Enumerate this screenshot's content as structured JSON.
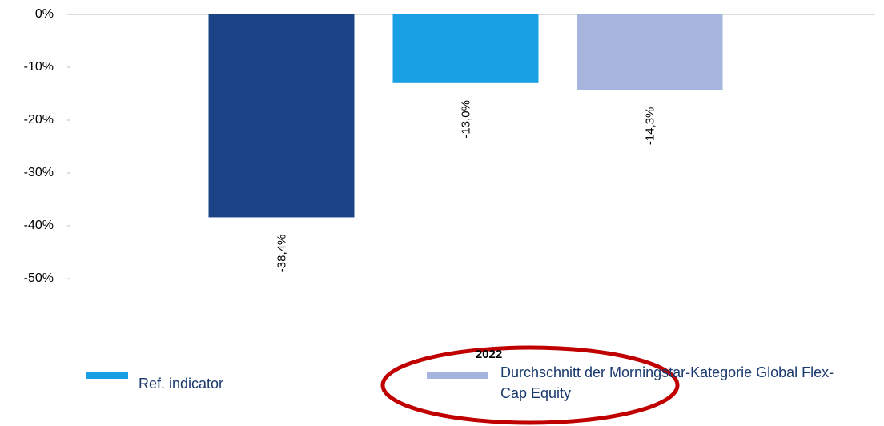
{
  "chart_data": {
    "type": "bar",
    "categories": [
      "2022"
    ],
    "series": [
      {
        "color": "#1b4386",
        "values": [
          -38.4
        ],
        "value_labels": [
          "-38,4%"
        ]
      },
      {
        "name": "Ref. indicator",
        "color": "#199fe3",
        "values": [
          -13.0
        ],
        "value_labels": [
          "-13,0%"
        ]
      },
      {
        "name": "Durchschnitt der Morningstar-Kategorie Global Flex-Cap Equity",
        "color": "#a6b5dd",
        "values": [
          -14.3
        ],
        "value_labels": [
          "-14,3%"
        ]
      }
    ],
    "ylim": [
      -50,
      0
    ],
    "yticks": [
      {
        "value": 0,
        "label": "0%"
      },
      {
        "value": -10,
        "label": "-10%"
      },
      {
        "value": -20,
        "label": "-20%"
      },
      {
        "value": -30,
        "label": "-30%"
      },
      {
        "value": -40,
        "label": "-40%"
      },
      {
        "value": -50,
        "label": "-50%"
      }
    ],
    "legend": "bottom"
  }
}
